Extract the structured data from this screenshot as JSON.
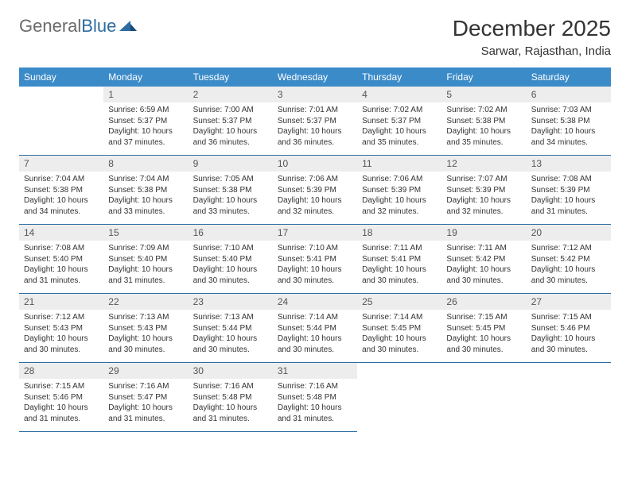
{
  "logo": {
    "text1": "General",
    "text2": "Blue"
  },
  "title": "December 2025",
  "location": "Sarwar, Rajasthan, India",
  "header_bg": "#3b8bc9",
  "daynum_bg": "#ededed",
  "row_border": "#2d6ca2",
  "weekdays": [
    "Sunday",
    "Monday",
    "Tuesday",
    "Wednesday",
    "Thursday",
    "Friday",
    "Saturday"
  ],
  "weeks": [
    [
      {
        "n": "",
        "sr": "",
        "ss": "",
        "dl": ""
      },
      {
        "n": "1",
        "sr": "Sunrise: 6:59 AM",
        "ss": "Sunset: 5:37 PM",
        "dl": "Daylight: 10 hours and 37 minutes."
      },
      {
        "n": "2",
        "sr": "Sunrise: 7:00 AM",
        "ss": "Sunset: 5:37 PM",
        "dl": "Daylight: 10 hours and 36 minutes."
      },
      {
        "n": "3",
        "sr": "Sunrise: 7:01 AM",
        "ss": "Sunset: 5:37 PM",
        "dl": "Daylight: 10 hours and 36 minutes."
      },
      {
        "n": "4",
        "sr": "Sunrise: 7:02 AM",
        "ss": "Sunset: 5:37 PM",
        "dl": "Daylight: 10 hours and 35 minutes."
      },
      {
        "n": "5",
        "sr": "Sunrise: 7:02 AM",
        "ss": "Sunset: 5:38 PM",
        "dl": "Daylight: 10 hours and 35 minutes."
      },
      {
        "n": "6",
        "sr": "Sunrise: 7:03 AM",
        "ss": "Sunset: 5:38 PM",
        "dl": "Daylight: 10 hours and 34 minutes."
      }
    ],
    [
      {
        "n": "7",
        "sr": "Sunrise: 7:04 AM",
        "ss": "Sunset: 5:38 PM",
        "dl": "Daylight: 10 hours and 34 minutes."
      },
      {
        "n": "8",
        "sr": "Sunrise: 7:04 AM",
        "ss": "Sunset: 5:38 PM",
        "dl": "Daylight: 10 hours and 33 minutes."
      },
      {
        "n": "9",
        "sr": "Sunrise: 7:05 AM",
        "ss": "Sunset: 5:38 PM",
        "dl": "Daylight: 10 hours and 33 minutes."
      },
      {
        "n": "10",
        "sr": "Sunrise: 7:06 AM",
        "ss": "Sunset: 5:39 PM",
        "dl": "Daylight: 10 hours and 32 minutes."
      },
      {
        "n": "11",
        "sr": "Sunrise: 7:06 AM",
        "ss": "Sunset: 5:39 PM",
        "dl": "Daylight: 10 hours and 32 minutes."
      },
      {
        "n": "12",
        "sr": "Sunrise: 7:07 AM",
        "ss": "Sunset: 5:39 PM",
        "dl": "Daylight: 10 hours and 32 minutes."
      },
      {
        "n": "13",
        "sr": "Sunrise: 7:08 AM",
        "ss": "Sunset: 5:39 PM",
        "dl": "Daylight: 10 hours and 31 minutes."
      }
    ],
    [
      {
        "n": "14",
        "sr": "Sunrise: 7:08 AM",
        "ss": "Sunset: 5:40 PM",
        "dl": "Daylight: 10 hours and 31 minutes."
      },
      {
        "n": "15",
        "sr": "Sunrise: 7:09 AM",
        "ss": "Sunset: 5:40 PM",
        "dl": "Daylight: 10 hours and 31 minutes."
      },
      {
        "n": "16",
        "sr": "Sunrise: 7:10 AM",
        "ss": "Sunset: 5:40 PM",
        "dl": "Daylight: 10 hours and 30 minutes."
      },
      {
        "n": "17",
        "sr": "Sunrise: 7:10 AM",
        "ss": "Sunset: 5:41 PM",
        "dl": "Daylight: 10 hours and 30 minutes."
      },
      {
        "n": "18",
        "sr": "Sunrise: 7:11 AM",
        "ss": "Sunset: 5:41 PM",
        "dl": "Daylight: 10 hours and 30 minutes."
      },
      {
        "n": "19",
        "sr": "Sunrise: 7:11 AM",
        "ss": "Sunset: 5:42 PM",
        "dl": "Daylight: 10 hours and 30 minutes."
      },
      {
        "n": "20",
        "sr": "Sunrise: 7:12 AM",
        "ss": "Sunset: 5:42 PM",
        "dl": "Daylight: 10 hours and 30 minutes."
      }
    ],
    [
      {
        "n": "21",
        "sr": "Sunrise: 7:12 AM",
        "ss": "Sunset: 5:43 PM",
        "dl": "Daylight: 10 hours and 30 minutes."
      },
      {
        "n": "22",
        "sr": "Sunrise: 7:13 AM",
        "ss": "Sunset: 5:43 PM",
        "dl": "Daylight: 10 hours and 30 minutes."
      },
      {
        "n": "23",
        "sr": "Sunrise: 7:13 AM",
        "ss": "Sunset: 5:44 PM",
        "dl": "Daylight: 10 hours and 30 minutes."
      },
      {
        "n": "24",
        "sr": "Sunrise: 7:14 AM",
        "ss": "Sunset: 5:44 PM",
        "dl": "Daylight: 10 hours and 30 minutes."
      },
      {
        "n": "25",
        "sr": "Sunrise: 7:14 AM",
        "ss": "Sunset: 5:45 PM",
        "dl": "Daylight: 10 hours and 30 minutes."
      },
      {
        "n": "26",
        "sr": "Sunrise: 7:15 AM",
        "ss": "Sunset: 5:45 PM",
        "dl": "Daylight: 10 hours and 30 minutes."
      },
      {
        "n": "27",
        "sr": "Sunrise: 7:15 AM",
        "ss": "Sunset: 5:46 PM",
        "dl": "Daylight: 10 hours and 30 minutes."
      }
    ],
    [
      {
        "n": "28",
        "sr": "Sunrise: 7:15 AM",
        "ss": "Sunset: 5:46 PM",
        "dl": "Daylight: 10 hours and 31 minutes."
      },
      {
        "n": "29",
        "sr": "Sunrise: 7:16 AM",
        "ss": "Sunset: 5:47 PM",
        "dl": "Daylight: 10 hours and 31 minutes."
      },
      {
        "n": "30",
        "sr": "Sunrise: 7:16 AM",
        "ss": "Sunset: 5:48 PM",
        "dl": "Daylight: 10 hours and 31 minutes."
      },
      {
        "n": "31",
        "sr": "Sunrise: 7:16 AM",
        "ss": "Sunset: 5:48 PM",
        "dl": "Daylight: 10 hours and 31 minutes."
      },
      {
        "n": "",
        "sr": "",
        "ss": "",
        "dl": ""
      },
      {
        "n": "",
        "sr": "",
        "ss": "",
        "dl": ""
      },
      {
        "n": "",
        "sr": "",
        "ss": "",
        "dl": ""
      }
    ]
  ]
}
